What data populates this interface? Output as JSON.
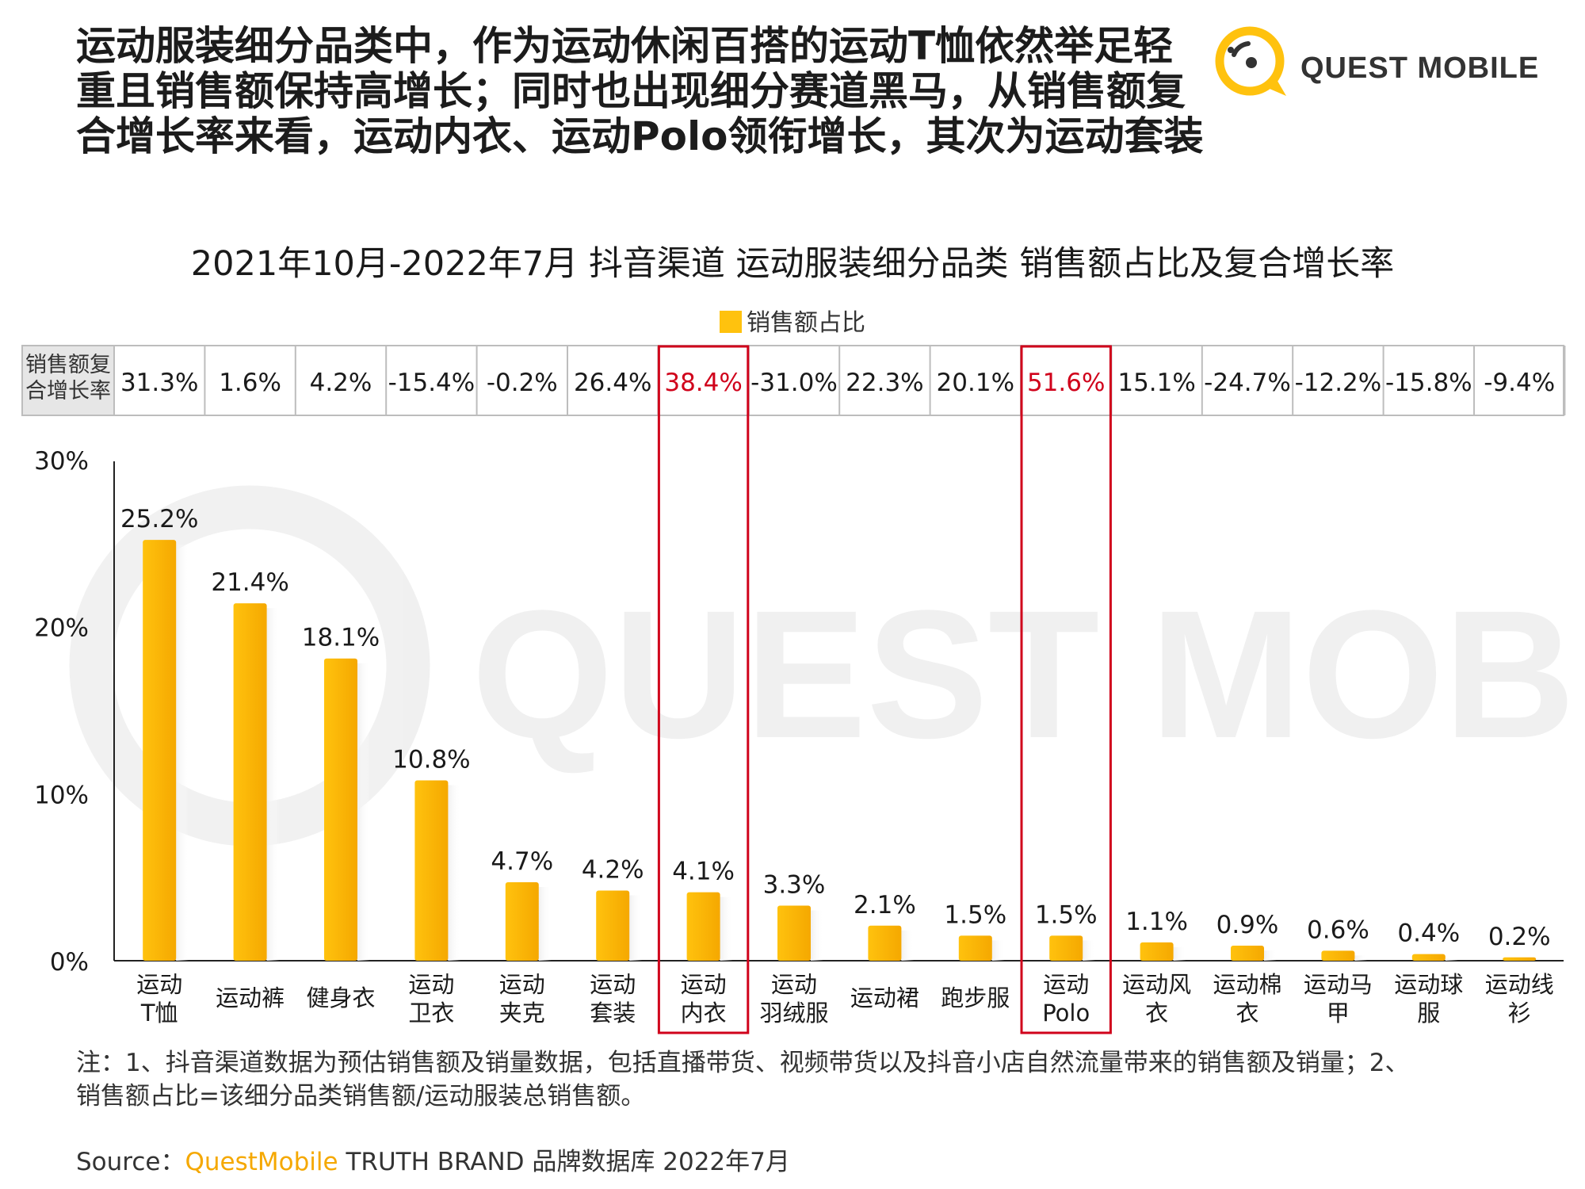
{
  "header": {
    "headline_lines": [
      "运动服装细分品类中，作为运动休闲百搭的运动T恤依然举足轻",
      "重且销售额保持高增长；同时也出现细分赛道黑马，从销售额复",
      "合增长率来看，运动内衣、运动Polo领衔增长，其次为运动套装"
    ],
    "logo_text": "QUEST MOBILE"
  },
  "colors": {
    "bar": "#FFC20E",
    "bar_dark": "#F5A800",
    "highlight": "#D0021B",
    "table_border": "#BDBDBD",
    "table_header_bg": "#E6E6E6"
  },
  "chart_data": {
    "type": "bar",
    "title": "2021年10月-2022年7月 抖音渠道  运动服装细分品类 销售额占比及复合增长率",
    "legend": [
      "销售额占比"
    ],
    "legend_placement": "top-center",
    "ylim": [
      0,
      30
    ],
    "yticks": [
      "0%",
      "10%",
      "20%",
      "30%"
    ],
    "categories": [
      [
        "运动",
        "T恤"
      ],
      [
        "运动裤"
      ],
      [
        "健身衣"
      ],
      [
        "运动",
        "卫衣"
      ],
      [
        "运动",
        "夹克"
      ],
      [
        "运动",
        "套装"
      ],
      [
        "运动",
        "内衣"
      ],
      [
        "运动",
        "羽绒服"
      ],
      [
        "运动裙"
      ],
      [
        "跑步服"
      ],
      [
        "运动",
        "Polo"
      ],
      [
        "运动风",
        "衣"
      ],
      [
        "运动棉",
        "衣"
      ],
      [
        "运动马",
        "甲"
      ],
      [
        "运动球",
        "服"
      ],
      [
        "运动线",
        "衫"
      ]
    ],
    "series": [
      {
        "name": "销售额占比",
        "values": [
          25.2,
          21.4,
          18.1,
          10.8,
          4.7,
          4.2,
          4.1,
          3.3,
          2.1,
          1.5,
          1.5,
          1.1,
          0.9,
          0.6,
          0.4,
          0.2
        ],
        "labels": [
          "25.2%",
          "21.4%",
          "18.1%",
          "10.8%",
          "4.7%",
          "4.2%",
          "4.1%",
          "3.3%",
          "2.1%",
          "1.5%",
          "1.5%",
          "1.1%",
          "0.9%",
          "0.6%",
          "0.4%",
          "0.2%"
        ]
      }
    ],
    "growth_row": {
      "header_lines": [
        "销售额复",
        "合增长率"
      ],
      "values": [
        "31.3%",
        "1.6%",
        "4.2%",
        "-15.4%",
        "-0.2%",
        "26.4%",
        "38.4%",
        "-31.0%",
        "22.3%",
        "20.1%",
        "51.6%",
        "15.1%",
        "-24.7%",
        "-12.2%",
        "-15.8%",
        "-9.4%"
      ]
    },
    "highlighted_categories": [
      6,
      10
    ],
    "grid": false
  },
  "notes": {
    "lines": [
      "注：1、抖音渠道数据为预估销售额及销量数据，包括直播带货、视频带货以及抖音小店自然流量带来的销售额及销量；2、",
      "销售额占比=该细分品类销售额/运动服装总销售额。"
    ]
  },
  "source": {
    "prefix": "Source：",
    "brand": "QuestMobile",
    "rest": " TRUTH BRAND 品牌数据库 2022年7月"
  }
}
